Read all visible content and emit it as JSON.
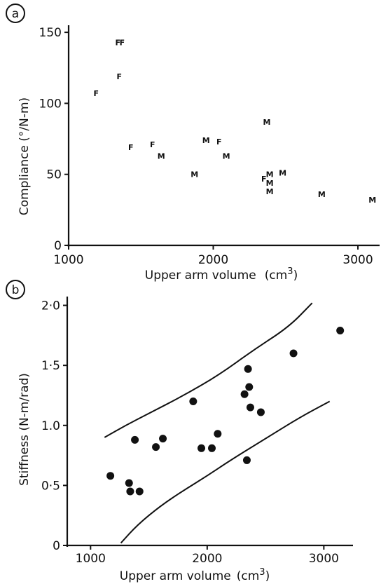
{
  "chart_data": [
    {
      "type": "scatter",
      "panel_label": "a",
      "xlabel": "Upper arm volume",
      "xlabel_unit": "cm",
      "xlabel_unit_exp": "3",
      "xlabel_close": ")",
      "ylabel": "Compliance  (°/N-m)",
      "xlim": [
        1000,
        3150
      ],
      "ylim": [
        0,
        155
      ],
      "xticks": [
        1000,
        2000,
        3000
      ],
      "xtick_labels": [
        "1000",
        "2000",
        "3000"
      ],
      "yticks": [
        0,
        50,
        100,
        150
      ],
      "ytick_labels": [
        "0",
        "50",
        "100",
        "150"
      ],
      "grid": false,
      "series": [
        {
          "name": "F",
          "points": [
            [
              1190,
              107
            ],
            [
              1340,
              143
            ],
            [
              1370,
              143
            ],
            [
              1350,
              119
            ],
            [
              1430,
              69
            ],
            [
              1580,
              71
            ],
            [
              2040,
              73
            ],
            [
              2350,
              47
            ]
          ]
        },
        {
          "name": "M",
          "points": [
            [
              1640,
              63
            ],
            [
              1870,
              50
            ],
            [
              1950,
              74
            ],
            [
              2090,
              63
            ],
            [
              2370,
              87
            ],
            [
              2390,
              50
            ],
            [
              2390,
              44
            ],
            [
              2390,
              38
            ],
            [
              2480,
              51
            ],
            [
              2750,
              36
            ],
            [
              3100,
              32
            ]
          ]
        }
      ]
    },
    {
      "type": "scatter",
      "panel_label": "b",
      "xlabel": "Upper arm volume",
      "xlabel_unit": "cm",
      "xlabel_unit_exp": "3",
      "xlabel_close": ")",
      "ylabel": "Stiffness  (N-m/rad)",
      "xlim": [
        800,
        3250
      ],
      "ylim": [
        0,
        2.05
      ],
      "xticks": [
        1000,
        2000,
        3000
      ],
      "xtick_labels": [
        "1000",
        "2000",
        "3000"
      ],
      "yticks": [
        0,
        0.5,
        1.0,
        1.5,
        2.0
      ],
      "ytick_labels": [
        "0",
        "0·5",
        "1.0",
        "1·5",
        "2·0"
      ],
      "grid": false,
      "points": [
        [
          1170,
          0.58
        ],
        [
          1330,
          0.52
        ],
        [
          1340,
          0.45
        ],
        [
          1420,
          0.45
        ],
        [
          1380,
          0.88
        ],
        [
          1560,
          0.82
        ],
        [
          1620,
          0.89
        ],
        [
          1880,
          1.2
        ],
        [
          1950,
          0.81
        ],
        [
          2040,
          0.81
        ],
        [
          2090,
          0.93
        ],
        [
          2320,
          1.26
        ],
        [
          2350,
          1.47
        ],
        [
          2360,
          1.32
        ],
        [
          2370,
          1.15
        ],
        [
          2460,
          1.11
        ],
        [
          2340,
          0.71
        ],
        [
          2740,
          1.6
        ],
        [
          3140,
          1.79
        ]
      ],
      "bands": {
        "upper": [
          [
            1120,
            0.9
          ],
          [
            1300,
            1.0
          ],
          [
            1500,
            1.1
          ],
          [
            1800,
            1.25
          ],
          [
            2100,
            1.42
          ],
          [
            2400,
            1.63
          ],
          [
            2700,
            1.82
          ],
          [
            2900,
            2.02
          ]
        ],
        "lower": [
          [
            1260,
            0.02
          ],
          [
            1400,
            0.17
          ],
          [
            1600,
            0.33
          ],
          [
            1800,
            0.46
          ],
          [
            2000,
            0.58
          ],
          [
            2200,
            0.71
          ],
          [
            2500,
            0.89
          ],
          [
            2800,
            1.07
          ],
          [
            3050,
            1.2
          ]
        ]
      }
    }
  ]
}
